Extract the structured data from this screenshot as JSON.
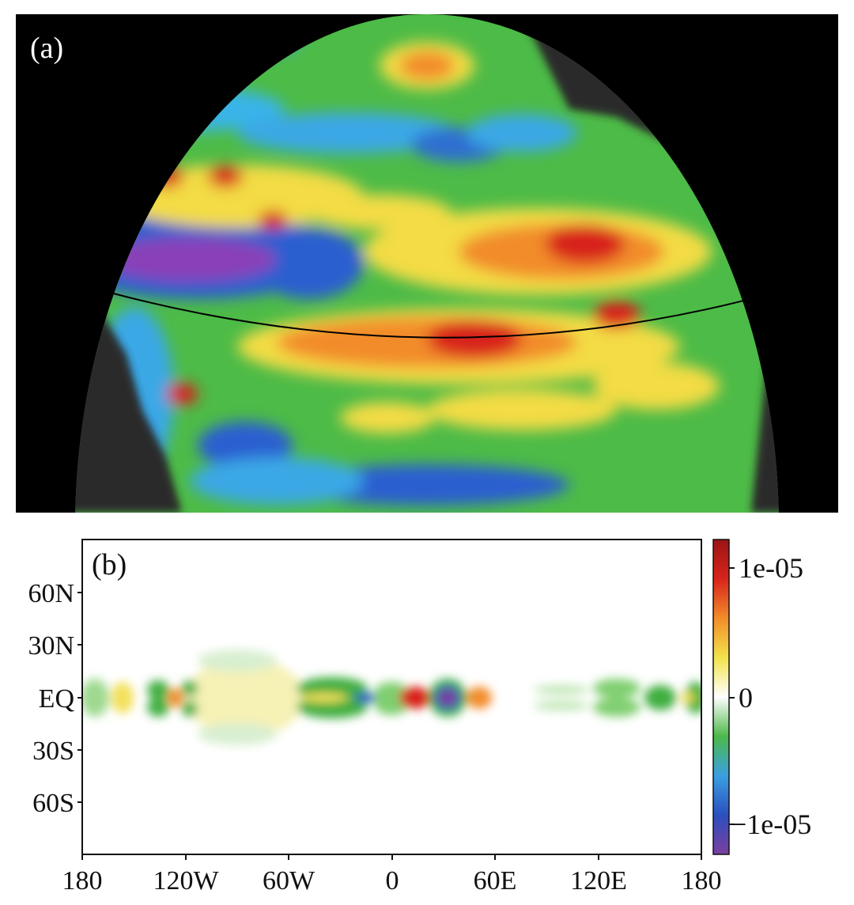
{
  "panel_a": {
    "label": "(a)"
  },
  "panel_b": {
    "label": "(b)",
    "y_ticks": [
      "60N",
      "30N",
      "EQ",
      "30S",
      "60S"
    ],
    "x_ticks": [
      "180",
      "120W",
      "60W",
      "0",
      "60E",
      "120E",
      "180"
    ],
    "colorbar": {
      "labels": [
        "1e-05",
        "0",
        "−1e-05"
      ],
      "colors": [
        "#7b3fa0",
        "#2b4fc0",
        "#3aa0e0",
        "#4db84a",
        "#ffffff",
        "#f2e34a",
        "#f28c2a",
        "#d8241c",
        "#9a1414"
      ]
    }
  },
  "chart_data": {
    "type": "heatmap",
    "xlim": [
      -180,
      180
    ],
    "ylim": [
      -90,
      90
    ],
    "colorbar_range": [
      -1.2e-05,
      1.2e-05
    ],
    "grid": false
  }
}
